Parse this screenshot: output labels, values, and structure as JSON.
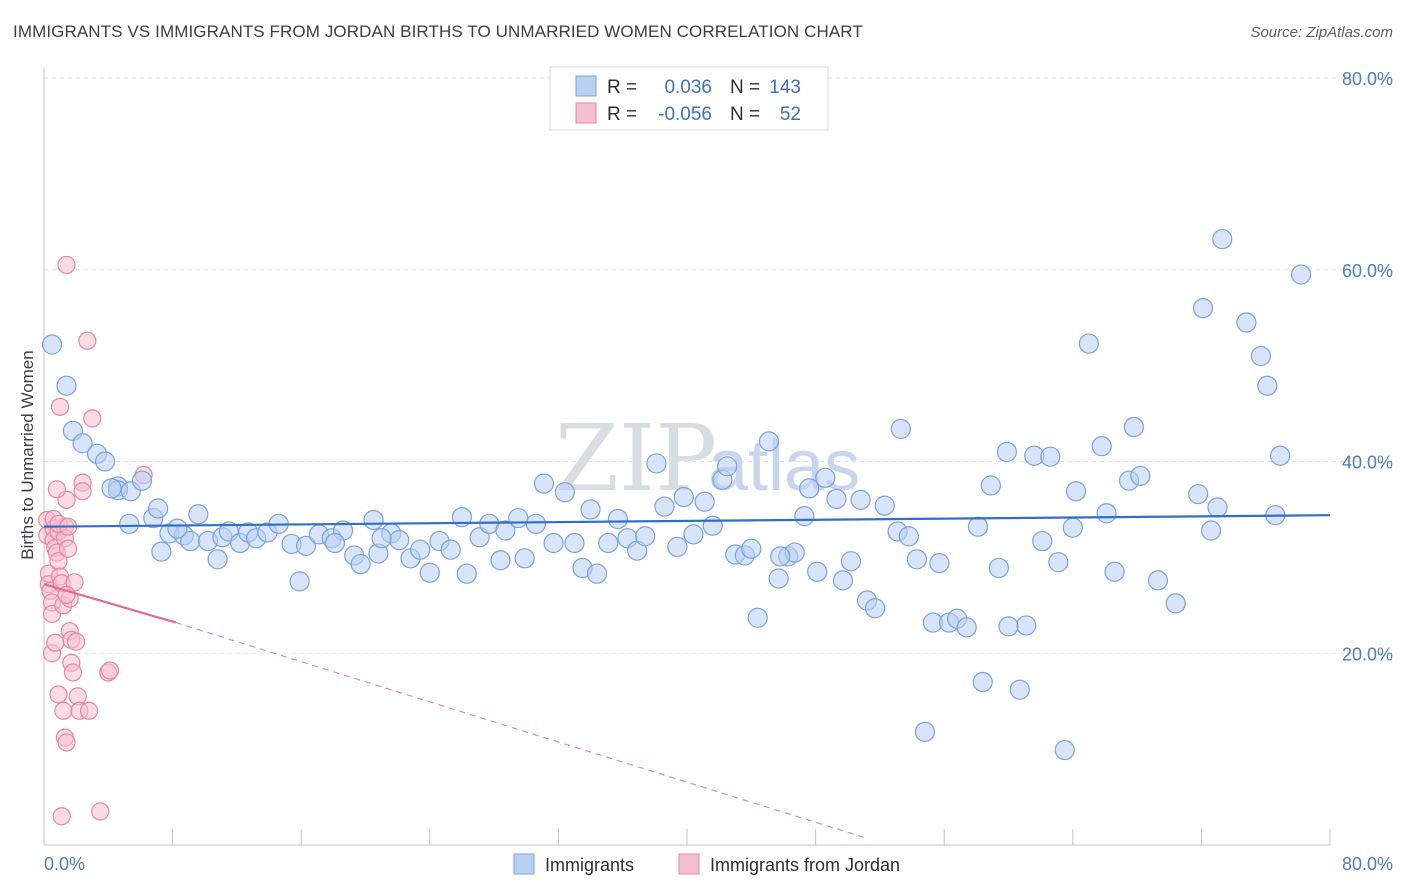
{
  "header": {
    "title": "IMMIGRANTS VS IMMIGRANTS FROM JORDAN BIRTHS TO UNMARRIED WOMEN CORRELATION CHART",
    "source": "Source: ZipAtlas.com"
  },
  "watermark": {
    "zip": "ZIP",
    "atlas": "atlas"
  },
  "legend": {
    "rows": [
      {
        "r_label": "R =",
        "r_value": "0.036",
        "n_label": "N =",
        "n_value": "143"
      },
      {
        "r_label": "R =",
        "r_value": "-0.056",
        "n_label": "N =",
        "n_value": "52"
      }
    ]
  },
  "bottom_legend": {
    "items": [
      "Immigrants",
      "Immigrants from Jordan"
    ]
  },
  "colors": {
    "blue_fill": "#b8d0f2",
    "blue_stroke": "#7aa3dc",
    "blue_line": "#2f6fcc",
    "pink_fill": "#f6bfd0",
    "pink_stroke": "#e8879f",
    "pink_line": "#e06a93",
    "grid": "#dde1e6",
    "axis": "#c0c4c9"
  },
  "chart_data": {
    "type": "scatter",
    "title": "IMMIGRANTS VS IMMIGRANTS FROM JORDAN BIRTHS TO UNMARRIED WOMEN CORRELATION CHART",
    "xlabel": "",
    "ylabel": "Births to Unmarried Women",
    "xlim": [
      0,
      80
    ],
    "ylim": [
      0,
      80
    ],
    "x_tick_labels": [
      "0.0%",
      "80.0%"
    ],
    "y_tick_labels": [
      "20.0%",
      "40.0%",
      "60.0%",
      "80.0%"
    ],
    "y_ticks": [
      20,
      40,
      60,
      80
    ],
    "grid": true,
    "legend_position": "top-center",
    "series": [
      {
        "name": "Immigrants",
        "R": 0.036,
        "N": 143,
        "trend": {
          "x": [
            0,
            80
          ],
          "y": [
            33.2,
            34.4
          ],
          "style": "solid"
        },
        "points": [
          [
            0.5,
            52.2
          ],
          [
            1.4,
            47.9
          ],
          [
            1.8,
            43.2
          ],
          [
            2.4,
            41.9
          ],
          [
            3.3,
            40.8
          ],
          [
            3.8,
            40.0
          ],
          [
            4.6,
            37.4
          ],
          [
            4.6,
            37.0
          ],
          [
            5.4,
            36.9
          ],
          [
            6.1,
            38.0
          ],
          [
            5.3,
            33.5
          ],
          [
            6.8,
            34.1
          ],
          [
            7.1,
            35.1
          ],
          [
            7.3,
            30.6
          ],
          [
            7.8,
            32.5
          ],
          [
            8.7,
            32.3
          ],
          [
            9.1,
            31.7
          ],
          [
            9.6,
            34.5
          ],
          [
            10.2,
            31.7
          ],
          [
            10.8,
            29.8
          ],
          [
            11.1,
            32.1
          ],
          [
            11.5,
            32.7
          ],
          [
            12.2,
            31.5
          ],
          [
            12.7,
            32.6
          ],
          [
            13.2,
            32.0
          ],
          [
            13.9,
            32.6
          ],
          [
            14.6,
            33.5
          ],
          [
            15.4,
            31.4
          ],
          [
            15.9,
            27.5
          ],
          [
            16.3,
            31.2
          ],
          [
            17.1,
            32.4
          ],
          [
            17.9,
            32.0
          ],
          [
            18.6,
            32.8
          ],
          [
            19.3,
            30.2
          ],
          [
            19.7,
            29.3
          ],
          [
            20.5,
            33.9
          ],
          [
            20.8,
            30.4
          ],
          [
            21.6,
            32.5
          ],
          [
            22.1,
            31.8
          ],
          [
            22.8,
            29.9
          ],
          [
            23.4,
            30.8
          ],
          [
            24.0,
            28.4
          ],
          [
            24.6,
            31.7
          ],
          [
            25.3,
            30.8
          ],
          [
            26.0,
            34.2
          ],
          [
            26.3,
            28.3
          ],
          [
            27.1,
            32.1
          ],
          [
            27.7,
            33.5
          ],
          [
            28.4,
            29.7
          ],
          [
            28.7,
            32.8
          ],
          [
            29.5,
            34.1
          ],
          [
            29.9,
            29.9
          ],
          [
            30.6,
            33.5
          ],
          [
            31.1,
            37.7
          ],
          [
            31.7,
            31.5
          ],
          [
            32.4,
            36.8
          ],
          [
            33.0,
            31.5
          ],
          [
            33.5,
            28.9
          ],
          [
            34.0,
            35.0
          ],
          [
            34.4,
            28.3
          ],
          [
            35.1,
            31.5
          ],
          [
            35.7,
            34.0
          ],
          [
            36.3,
            32.0
          ],
          [
            36.9,
            30.7
          ],
          [
            37.4,
            32.2
          ],
          [
            38.1,
            39.8
          ],
          [
            38.6,
            35.3
          ],
          [
            39.4,
            31.1
          ],
          [
            39.8,
            36.3
          ],
          [
            40.4,
            32.4
          ],
          [
            41.1,
            35.8
          ],
          [
            41.6,
            33.3
          ],
          [
            42.2,
            38.1
          ],
          [
            42.5,
            39.5
          ],
          [
            43.0,
            30.3
          ],
          [
            43.6,
            30.2
          ],
          [
            44.0,
            30.9
          ],
          [
            44.4,
            23.7
          ],
          [
            45.1,
            42.1
          ],
          [
            45.7,
            27.8
          ],
          [
            46.3,
            30.1
          ],
          [
            46.7,
            30.5
          ],
          [
            47.3,
            34.3
          ],
          [
            47.6,
            37.2
          ],
          [
            48.1,
            28.5
          ],
          [
            48.6,
            38.3
          ],
          [
            49.3,
            36.1
          ],
          [
            49.7,
            27.6
          ],
          [
            50.2,
            29.6
          ],
          [
            50.8,
            36.0
          ],
          [
            51.2,
            25.5
          ],
          [
            51.7,
            24.7
          ],
          [
            52.3,
            35.4
          ],
          [
            53.1,
            32.7
          ],
          [
            53.3,
            43.4
          ],
          [
            53.8,
            32.2
          ],
          [
            54.3,
            29.8
          ],
          [
            54.8,
            11.8
          ],
          [
            55.3,
            23.2
          ],
          [
            55.7,
            29.4
          ],
          [
            56.3,
            23.2
          ],
          [
            56.8,
            23.6
          ],
          [
            57.4,
            22.7
          ],
          [
            58.1,
            33.2
          ],
          [
            58.4,
            17.0
          ],
          [
            58.9,
            37.5
          ],
          [
            59.4,
            28.9
          ],
          [
            59.9,
            41.0
          ],
          [
            60.7,
            16.2
          ],
          [
            61.1,
            22.9
          ],
          [
            61.6,
            40.6
          ],
          [
            62.1,
            31.7
          ],
          [
            62.6,
            40.5
          ],
          [
            63.1,
            29.5
          ],
          [
            63.5,
            9.9
          ],
          [
            64.0,
            33.1
          ],
          [
            64.2,
            36.9
          ],
          [
            65.0,
            52.3
          ],
          [
            65.8,
            41.6
          ],
          [
            66.1,
            34.6
          ],
          [
            66.6,
            28.5
          ],
          [
            67.5,
            38.0
          ],
          [
            67.8,
            43.6
          ],
          [
            68.2,
            38.5
          ],
          [
            69.3,
            27.6
          ],
          [
            70.4,
            25.2
          ],
          [
            71.8,
            36.6
          ],
          [
            72.1,
            56.0
          ],
          [
            72.6,
            32.8
          ],
          [
            73.0,
            35.2
          ],
          [
            73.3,
            63.2
          ],
          [
            74.8,
            54.5
          ],
          [
            75.7,
            51.0
          ],
          [
            76.1,
            47.9
          ],
          [
            76.6,
            34.4
          ],
          [
            76.9,
            40.6
          ],
          [
            78.2,
            59.5
          ],
          [
            4.2,
            37.2
          ],
          [
            21.0,
            32.0
          ],
          [
            45.8,
            30.1
          ],
          [
            60.0,
            22.8
          ],
          [
            18.1,
            31.5
          ],
          [
            8.3,
            33.0
          ]
        ]
      },
      {
        "name": "Immigrants from Jordan",
        "R": -0.056,
        "N": 52,
        "trend": {
          "x": [
            0,
            8.2
          ],
          "y": [
            27.2,
            23.2
          ],
          "style": "solid",
          "extended_x": [
            8.2,
            51.0
          ],
          "extended_y": [
            23.2,
            0.8
          ],
          "extended_style": "dashed"
        },
        "points": [
          [
            0.2,
            33.9
          ],
          [
            0.2,
            32.3
          ],
          [
            0.3,
            28.3
          ],
          [
            0.3,
            27.2
          ],
          [
            0.4,
            26.5
          ],
          [
            0.5,
            25.3
          ],
          [
            0.5,
            24.1
          ],
          [
            0.6,
            33.0
          ],
          [
            0.6,
            31.8
          ],
          [
            0.7,
            31.0
          ],
          [
            0.8,
            30.5
          ],
          [
            0.9,
            32.7
          ],
          [
            0.9,
            29.6
          ],
          [
            1.0,
            28.0
          ],
          [
            1.1,
            27.3
          ],
          [
            1.2,
            25.0
          ],
          [
            1.3,
            33.2
          ],
          [
            1.3,
            32.0
          ],
          [
            1.4,
            36.0
          ],
          [
            1.5,
            30.9
          ],
          [
            1.6,
            22.3
          ],
          [
            1.7,
            21.4
          ],
          [
            1.7,
            19.0
          ],
          [
            1.8,
            18.0
          ],
          [
            1.9,
            27.4
          ],
          [
            2.0,
            21.2
          ],
          [
            2.1,
            15.5
          ],
          [
            2.2,
            14.0
          ],
          [
            2.4,
            37.8
          ],
          [
            2.4,
            36.9
          ],
          [
            2.7,
            52.6
          ],
          [
            3.0,
            44.5
          ],
          [
            3.5,
            3.5
          ],
          [
            4.0,
            18.0
          ],
          [
            4.1,
            18.2
          ],
          [
            1.0,
            45.7
          ],
          [
            1.4,
            60.5
          ],
          [
            0.8,
            37.1
          ],
          [
            1.6,
            25.7
          ],
          [
            1.4,
            26.1
          ],
          [
            0.5,
            20.0
          ],
          [
            0.7,
            21.1
          ],
          [
            0.9,
            15.7
          ],
          [
            1.2,
            14.0
          ],
          [
            1.3,
            11.2
          ],
          [
            1.4,
            10.7
          ],
          [
            1.1,
            3.0
          ],
          [
            2.8,
            14.0
          ],
          [
            6.2,
            38.6
          ],
          [
            0.6,
            34.0
          ],
          [
            0.9,
            33.5
          ],
          [
            1.5,
            33.2
          ]
        ]
      }
    ]
  }
}
